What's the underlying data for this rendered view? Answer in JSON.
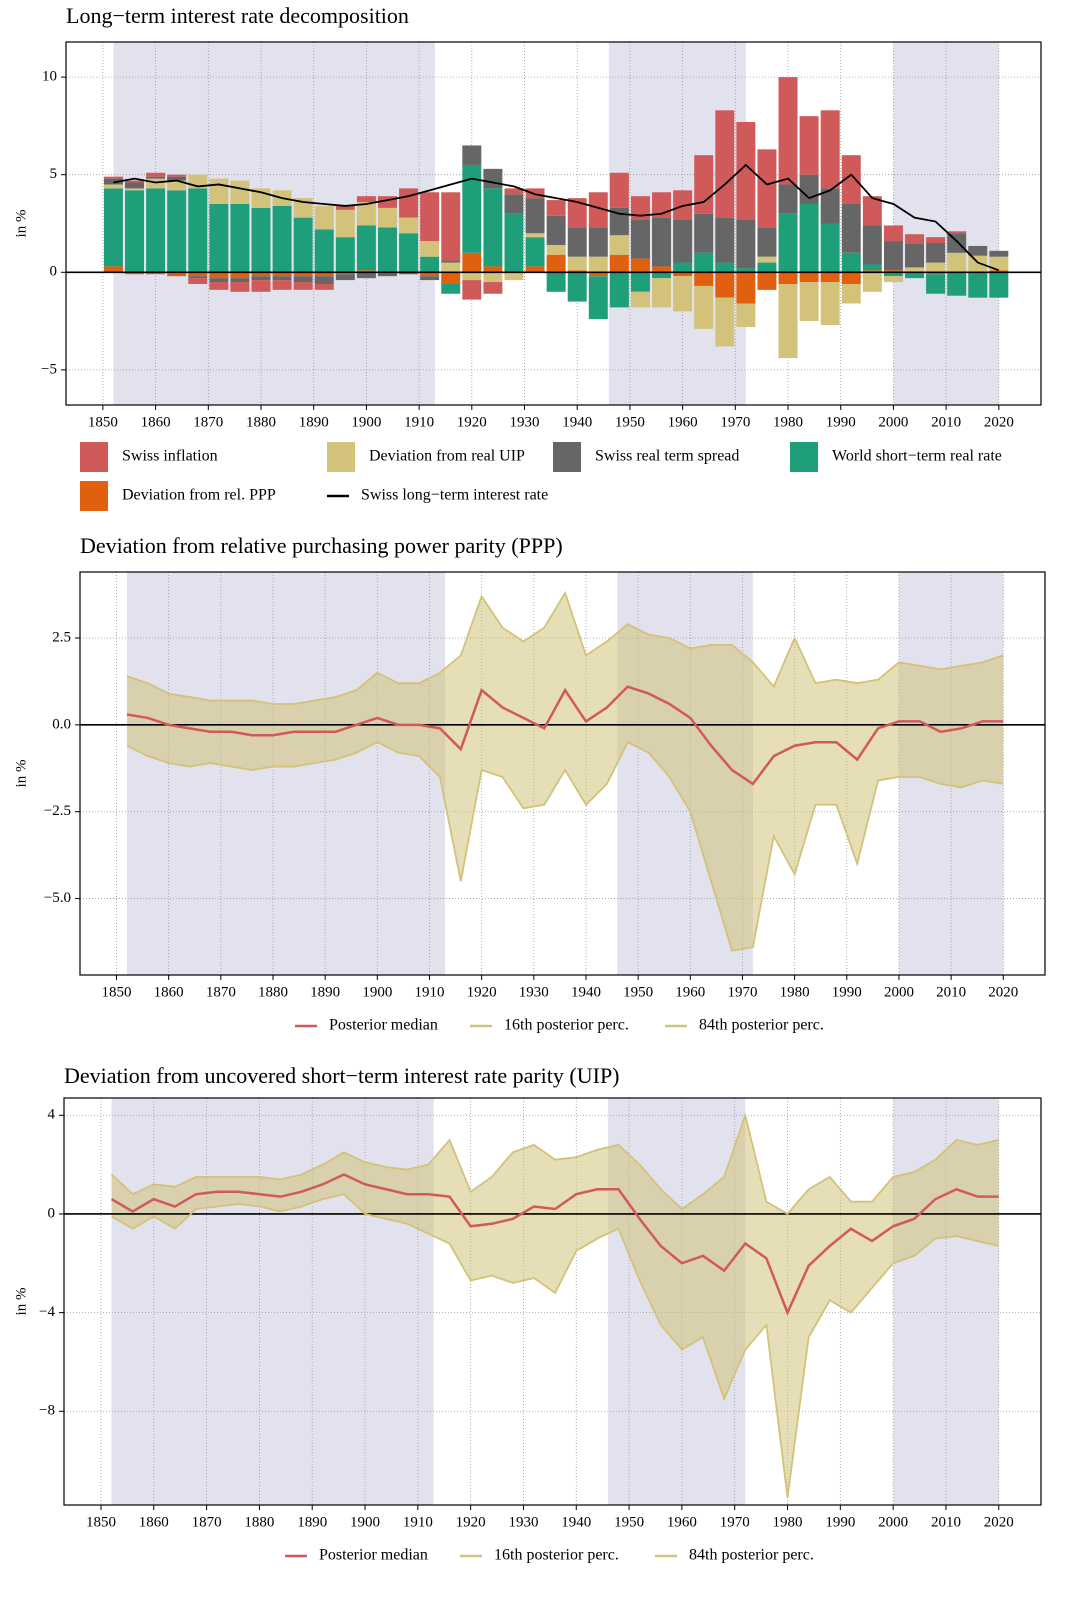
{
  "chart_data": [
    {
      "type": "bar",
      "stacked": true,
      "title": "Long−term interest rate decomposition",
      "ylabel": "in %",
      "x": [
        1852,
        1856,
        1860,
        1864,
        1868,
        1872,
        1876,
        1880,
        1884,
        1888,
        1892,
        1896,
        1900,
        1904,
        1908,
        1912,
        1916,
        1920,
        1924,
        1928,
        1932,
        1936,
        1940,
        1944,
        1948,
        1952,
        1956,
        1960,
        1964,
        1968,
        1972,
        1976,
        1980,
        1984,
        1988,
        1992,
        1996,
        2000,
        2004,
        2008,
        2012,
        2016,
        2020
      ],
      "xlim": [
        1843,
        2028
      ],
      "xticks": [
        1850,
        1860,
        1870,
        1880,
        1890,
        1900,
        1910,
        1920,
        1930,
        1940,
        1950,
        1960,
        1970,
        1980,
        1990,
        2000,
        2010,
        2020
      ],
      "ylim": [
        -6.8,
        11.8
      ],
      "yticks": [
        {
          "value": -5,
          "label": "−5"
        },
        0,
        5,
        10
      ],
      "grid": true,
      "shaded_periods": [
        [
          1852,
          1913
        ],
        [
          1946,
          1972
        ],
        [
          2000,
          2020
        ]
      ],
      "shade_color": "#e2e2ee",
      "series": [
        {
          "name": "Swiss inflation",
          "color": "#d05a5a",
          "values": [
            0.1,
            0.1,
            0.2,
            0.1,
            -0.3,
            -0.4,
            -0.5,
            -0.6,
            -0.5,
            -0.4,
            -0.3,
            0.2,
            0.3,
            0.6,
            1.5,
            2.5,
            3.5,
            -1.0,
            -0.6,
            0.3,
            0.5,
            0.8,
            1.5,
            1.8,
            1.8,
            1.2,
            1.3,
            1.5,
            3.0,
            5.5,
            5.0,
            4.0,
            5.5,
            3.0,
            4.0,
            2.5,
            1.5,
            0.8,
            0.5,
            0.3,
            0.1,
            0,
            0
          ]
        },
        {
          "name": "Deviation from real UIP",
          "color": "#d2c27a",
          "values": [
            0.2,
            0.1,
            0.5,
            0.5,
            0.7,
            1.3,
            1.2,
            1.0,
            0.8,
            1.0,
            1.2,
            1.4,
            1.2,
            1.0,
            0.8,
            0.8,
            0.5,
            -0.4,
            -0.5,
            -0.4,
            0.2,
            0.5,
            0.7,
            0.8,
            1.0,
            -0.8,
            -1.5,
            -1.8,
            -2.2,
            -2.5,
            -1.2,
            0.3,
            -3.8,
            -2.0,
            -2.2,
            -1.0,
            -1.0,
            -0.3,
            0.2,
            0.5,
            1.0,
            0.8,
            0.7
          ]
        },
        {
          "name": "Swiss real term spread",
          "color": "#666666",
          "values": [
            0.3,
            0.3,
            0.1,
            0.2,
            -0.1,
            -0.2,
            -0.2,
            -0.2,
            -0.2,
            -0.3,
            -0.4,
            -0.3,
            -0.3,
            -0.2,
            -0.1,
            -0.2,
            0.1,
            1.0,
            1.0,
            1.0,
            1.8,
            1.5,
            1.5,
            1.5,
            1.4,
            2.0,
            2.5,
            2.2,
            2.0,
            2.3,
            2.5,
            1.5,
            1.5,
            1.5,
            1.8,
            2.5,
            2.0,
            1.5,
            1.2,
            1.0,
            1.0,
            0.5,
            0.3
          ]
        },
        {
          "name": "World short−term real rate",
          "color": "#1f9e7a",
          "values": [
            4.0,
            4.2,
            4.3,
            4.2,
            4.3,
            3.5,
            3.5,
            3.3,
            3.4,
            2.8,
            2.2,
            1.8,
            2.3,
            2.3,
            2.0,
            0.8,
            -0.5,
            4.5,
            4.0,
            3.0,
            1.5,
            -1.0,
            -1.5,
            -2.2,
            -1.8,
            -1.0,
            -0.3,
            0.5,
            1.0,
            0.5,
            0.2,
            0.5,
            3.0,
            3.5,
            2.5,
            1.0,
            0.3,
            -0.2,
            -0.3,
            -1.0,
            -1.2,
            -1.3,
            -1.3
          ]
        },
        {
          "name": "Deviation from rel. PPP",
          "color": "#e06010",
          "values": [
            0.3,
            -0.1,
            -0.1,
            -0.2,
            -0.2,
            -0.3,
            -0.3,
            -0.2,
            -0.2,
            -0.2,
            -0.2,
            -0.1,
            0.1,
            0,
            0,
            -0.2,
            -0.6,
            1.0,
            0.3,
            0,
            0.3,
            0.9,
            0.1,
            -0.2,
            0.9,
            0.7,
            0.3,
            -0.2,
            -0.7,
            -1.3,
            -1.6,
            -0.9,
            -0.6,
            -0.5,
            -0.5,
            -0.6,
            0.1,
            0.1,
            0.05,
            -0.1,
            0,
            0.05,
            0.1
          ]
        },
        {
          "name": "Swiss long−term interest rate",
          "type": "line",
          "color": "#000000",
          "values": [
            4.6,
            4.8,
            4.6,
            4.7,
            4.4,
            4.5,
            4.3,
            4.1,
            3.8,
            3.6,
            3.5,
            3.4,
            3.5,
            3.7,
            3.9,
            4.2,
            4.5,
            4.8,
            4.6,
            4.4,
            4.0,
            3.8,
            3.6,
            3.3,
            3.0,
            2.9,
            3.0,
            3.4,
            3.6,
            4.5,
            5.5,
            4.5,
            4.8,
            3.8,
            4.2,
            5.0,
            3.8,
            3.5,
            2.8,
            2.6,
            1.6,
            0.5,
            0.1
          ]
        }
      ]
    },
    {
      "type": "line",
      "band": true,
      "title": "Deviation from relative purchasing power parity (PPP)",
      "ylabel": "in %",
      "x": [
        1852,
        1856,
        1860,
        1864,
        1868,
        1872,
        1876,
        1880,
        1884,
        1888,
        1892,
        1896,
        1900,
        1904,
        1908,
        1912,
        1916,
        1920,
        1924,
        1928,
        1932,
        1936,
        1940,
        1944,
        1948,
        1952,
        1956,
        1960,
        1964,
        1968,
        1972,
        1976,
        1980,
        1984,
        1988,
        1992,
        1996,
        2000,
        2004,
        2008,
        2012,
        2016,
        2020
      ],
      "xlim": [
        1843,
        2028
      ],
      "xticks": [
        1850,
        1860,
        1870,
        1880,
        1890,
        1900,
        1910,
        1920,
        1930,
        1940,
        1950,
        1960,
        1970,
        1980,
        1990,
        2000,
        2010,
        2020
      ],
      "ylim": [
        -7.2,
        4.4
      ],
      "yticks": [
        {
          "value": -5,
          "label": "−5.0"
        },
        {
          "value": -2.5,
          "label": "−2.5"
        },
        {
          "value": 0,
          "label": "0.0"
        },
        2.5
      ],
      "grid": true,
      "shaded_periods": [
        [
          1852,
          1913
        ],
        [
          1946,
          1972
        ],
        [
          2000,
          2020
        ]
      ],
      "shade_color": "#e2e2ee",
      "series": [
        {
          "name": "Posterior median",
          "color": "#d05a5a",
          "values": [
            0.3,
            0.2,
            0,
            -0.1,
            -0.2,
            -0.2,
            -0.3,
            -0.3,
            -0.2,
            -0.2,
            -0.2,
            0,
            0.2,
            0,
            0,
            -0.1,
            -0.7,
            1.0,
            0.5,
            0.2,
            -0.1,
            1.0,
            0.1,
            0.5,
            1.1,
            0.9,
            0.6,
            0.2,
            -0.6,
            -1.3,
            -1.7,
            -0.9,
            -0.6,
            -0.5,
            -0.5,
            -1.0,
            -0.1,
            0.1,
            0.1,
            -0.2,
            -0.1,
            0.1,
            0.1
          ]
        },
        {
          "name": "16th posterior perc.",
          "color": "#d2c27a",
          "values": [
            -0.6,
            -0.9,
            -1.1,
            -1.2,
            -1.1,
            -1.2,
            -1.3,
            -1.2,
            -1.2,
            -1.1,
            -1.0,
            -0.8,
            -0.5,
            -0.8,
            -0.9,
            -1.5,
            -4.5,
            -1.3,
            -1.5,
            -2.4,
            -2.3,
            -1.3,
            -2.3,
            -1.7,
            -0.5,
            -0.8,
            -1.5,
            -2.5,
            -4.5,
            -6.5,
            -6.4,
            -3.2,
            -4.3,
            -2.3,
            -2.3,
            -4.0,
            -1.6,
            -1.5,
            -1.5,
            -1.7,
            -1.8,
            -1.6,
            -1.7
          ]
        },
        {
          "name": "84th posterior perc.",
          "color": "#d2c27a",
          "values": [
            1.4,
            1.2,
            0.9,
            0.8,
            0.7,
            0.7,
            0.7,
            0.6,
            0.6,
            0.7,
            0.8,
            1.0,
            1.5,
            1.2,
            1.2,
            1.5,
            2.0,
            3.7,
            2.8,
            2.4,
            2.8,
            3.8,
            2.0,
            2.4,
            2.9,
            2.6,
            2.5,
            2.2,
            2.3,
            2.3,
            1.8,
            1.1,
            2.5,
            1.2,
            1.3,
            1.2,
            1.3,
            1.8,
            1.7,
            1.6,
            1.7,
            1.8,
            2.0
          ]
        }
      ]
    },
    {
      "type": "line",
      "band": true,
      "title": "Deviation from uncovered short−term interest rate parity (UIP)",
      "ylabel": "in %",
      "x": [
        1852,
        1856,
        1860,
        1864,
        1868,
        1872,
        1876,
        1880,
        1884,
        1888,
        1892,
        1896,
        1900,
        1904,
        1908,
        1912,
        1916,
        1920,
        1924,
        1928,
        1932,
        1936,
        1940,
        1944,
        1948,
        1952,
        1956,
        1960,
        1964,
        1968,
        1972,
        1976,
        1980,
        1984,
        1988,
        1992,
        1996,
        2000,
        2004,
        2008,
        2012,
        2016,
        2020
      ],
      "xlim": [
        1843,
        2028
      ],
      "xticks": [
        1850,
        1860,
        1870,
        1880,
        1890,
        1900,
        1910,
        1920,
        1930,
        1940,
        1950,
        1960,
        1970,
        1980,
        1990,
        2000,
        2010,
        2020
      ],
      "ylim": [
        -11.8,
        4.7
      ],
      "yticks": [
        {
          "value": -8,
          "label": "−8"
        },
        {
          "value": -4,
          "label": "−4"
        },
        0,
        4
      ],
      "grid": true,
      "shaded_periods": [
        [
          1852,
          1913
        ],
        [
          1946,
          1972
        ],
        [
          2000,
          2020
        ]
      ],
      "shade_color": "#e2e2ee",
      "series": [
        {
          "name": "Posterior median",
          "color": "#d05a5a",
          "values": [
            0.6,
            0.1,
            0.6,
            0.3,
            0.8,
            0.9,
            0.9,
            0.8,
            0.7,
            0.9,
            1.2,
            1.6,
            1.2,
            1.0,
            0.8,
            0.8,
            0.7,
            -0.5,
            -0.4,
            -0.2,
            0.3,
            0.2,
            0.8,
            1.0,
            1.0,
            -0.2,
            -1.3,
            -2.0,
            -1.7,
            -2.3,
            -1.2,
            -1.8,
            -4.0,
            -2.1,
            -1.3,
            -0.6,
            -1.1,
            -0.5,
            -0.2,
            0.6,
            1.0,
            0.7,
            0.7
          ]
        },
        {
          "name": "16th posterior perc.",
          "color": "#d2c27a",
          "values": [
            -0.1,
            -0.6,
            -0.1,
            -0.6,
            0.2,
            0.3,
            0.4,
            0.3,
            0.1,
            0.3,
            0.6,
            0.8,
            0.0,
            -0.2,
            -0.4,
            -0.8,
            -1.2,
            -2.7,
            -2.5,
            -2.8,
            -2.6,
            -3.2,
            -1.5,
            -1.0,
            -0.6,
            -2.7,
            -4.5,
            -5.5,
            -5.0,
            -7.5,
            -5.5,
            -4.5,
            -11.5,
            -5.0,
            -3.5,
            -4.0,
            -3.0,
            -2.0,
            -1.7,
            -1.0,
            -0.9,
            -1.1,
            -1.3
          ]
        },
        {
          "name": "84th posterior perc.",
          "color": "#d2c27a",
          "values": [
            1.6,
            0.8,
            1.2,
            1.1,
            1.5,
            1.5,
            1.5,
            1.5,
            1.4,
            1.6,
            2.0,
            2.5,
            2.1,
            1.9,
            1.8,
            2.0,
            3.0,
            0.9,
            1.5,
            2.5,
            2.8,
            2.2,
            2.3,
            2.6,
            2.8,
            2.0,
            1.0,
            0.2,
            0.8,
            1.5,
            4.0,
            0.5,
            0.0,
            1.0,
            1.5,
            0.5,
            0.5,
            1.5,
            1.7,
            2.2,
            3.0,
            2.8,
            3.0
          ]
        }
      ]
    }
  ]
}
